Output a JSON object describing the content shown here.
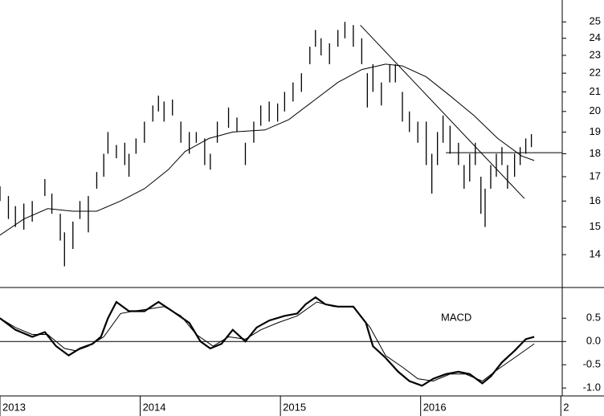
{
  "chart_data": [
    {
      "type": "hilo",
      "log_scale": true,
      "color": "#000000",
      "xlim": [
        2013.0,
        2017.01
      ],
      "ylim": [
        12.9,
        26.4
      ],
      "yticks": [
        14,
        15,
        16,
        17,
        18,
        19,
        20,
        21,
        22,
        23,
        24,
        25
      ],
      "x": [
        2013.0,
        2013.06,
        2013.11,
        2013.17,
        2013.23,
        2013.32,
        2013.37,
        2013.43,
        2013.46,
        2013.52,
        2013.57,
        2013.63,
        2013.69,
        2013.74,
        2013.77,
        2013.83,
        2013.89,
        2013.92,
        2013.97,
        2014.03,
        2014.09,
        2014.13,
        2014.17,
        2014.23,
        2014.29,
        2014.35,
        2014.4,
        2014.46,
        2014.5,
        2014.55,
        2014.63,
        2014.69,
        2014.75,
        2014.81,
        2014.86,
        2014.92,
        2014.98,
        2015.03,
        2015.09,
        2015.15,
        2015.21,
        2015.25,
        2015.29,
        2015.35,
        2015.41,
        2015.46,
        2015.52,
        2015.58,
        2015.62,
        2015.66,
        2015.72,
        2015.78,
        2015.82,
        2015.87,
        2015.92,
        2015.98,
        2016.04,
        2016.08,
        2016.12,
        2016.16,
        2016.21,
        2016.27,
        2016.31,
        2016.35,
        2016.39,
        2016.43,
        2016.46,
        2016.5,
        2016.54,
        2016.58,
        2016.62,
        2016.67,
        2016.71,
        2016.75,
        2016.79
      ],
      "low": [
        16.0,
        15.3,
        15.0,
        14.9,
        15.2,
        16.2,
        15.5,
        14.5,
        13.6,
        14.2,
        15.3,
        14.8,
        16.5,
        17.0,
        18.0,
        17.8,
        17.5,
        17.0,
        18.0,
        18.5,
        19.5,
        20.0,
        19.5,
        19.8,
        18.5,
        18.0,
        18.5,
        17.5,
        17.3,
        18.5,
        19.2,
        19.0,
        17.5,
        18.5,
        19.3,
        19.5,
        19.5,
        20.0,
        20.5,
        21.0,
        22.5,
        23.5,
        23.0,
        22.5,
        23.5,
        24.0,
        23.5,
        22.5,
        20.2,
        21.0,
        20.3,
        21.5,
        21.5,
        19.5,
        19.0,
        18.5,
        17.5,
        16.3,
        17.5,
        18.5,
        18.0,
        17.5,
        16.5,
        16.8,
        17.5,
        15.5,
        15.0,
        16.5,
        17.0,
        17.5,
        16.5,
        17.0,
        17.5,
        18.0,
        18.3
      ],
      "high": [
        16.6,
        16.2,
        15.8,
        15.9,
        16.0,
        16.9,
        16.3,
        15.5,
        14.8,
        15.2,
        16.0,
        16.2,
        17.2,
        18.0,
        19.0,
        18.4,
        18.5,
        18.0,
        18.7,
        19.5,
        20.3,
        20.8,
        20.5,
        20.6,
        19.5,
        19.0,
        19.0,
        18.7,
        18.0,
        19.5,
        20.2,
        19.7,
        18.5,
        19.5,
        20.3,
        20.5,
        20.4,
        21.0,
        21.5,
        22.0,
        23.5,
        24.5,
        24.0,
        23.7,
        24.5,
        25.0,
        24.8,
        24.0,
        22.0,
        22.5,
        21.5,
        22.5,
        22.5,
        21.0,
        20.0,
        19.5,
        19.5,
        18.0,
        19.0,
        19.8,
        19.3,
        18.5,
        17.5,
        18.0,
        18.5,
        17.0,
        16.5,
        17.5,
        18.0,
        18.3,
        17.5,
        18.0,
        18.3,
        18.7,
        18.9
      ],
      "series": [
        {
          "color": "#000000",
          "x": [
            2013.0,
            2013.17,
            2013.34,
            2013.52,
            2013.69,
            2013.86,
            2014.03,
            2014.2,
            2014.32,
            2014.49,
            2014.66,
            2014.89,
            2015.06,
            2015.23,
            2015.41,
            2015.58,
            2015.75,
            2015.87,
            2016.04,
            2016.21,
            2016.38,
            2016.55,
            2016.72,
            2016.81
          ],
          "values": [
            14.7,
            15.3,
            15.7,
            15.6,
            15.6,
            16.0,
            16.5,
            17.3,
            18.1,
            18.7,
            19.0,
            19.1,
            19.6,
            20.5,
            21.5,
            22.2,
            22.5,
            22.4,
            21.8,
            20.8,
            19.8,
            18.7,
            17.9,
            17.7
          ]
        },
        {
          "color": "#000000",
          "x": [
            2015.57,
            2016.74
          ],
          "values": [
            24.8,
            16.1
          ]
        },
        {
          "color": "#000000",
          "x": [
            2016.18,
            2017.01
          ],
          "values": [
            18.05,
            18.05
          ]
        }
      ]
    },
    {
      "type": "line",
      "annotation": "MACD",
      "zero_line": true,
      "xlim": [
        2013.0,
        2017.01
      ],
      "ylim": [
        -1.17,
        1.16
      ],
      "yticks": [
        0.5,
        {
          "value": 0,
          "label": "0.0"
        },
        -0.5,
        {
          "value": -1,
          "label": "-1.0"
        }
      ],
      "xticks": [
        2013,
        2014,
        2015,
        2016,
        {
          "value": 2017,
          "label": "2"
        }
      ],
      "series": [
        {
          "color": "#000000",
          "width": 2.2,
          "x": [
            2013.0,
            2013.11,
            2013.23,
            2013.32,
            2013.4,
            2013.49,
            2013.57,
            2013.66,
            2013.72,
            2013.77,
            2013.83,
            2013.92,
            2014.03,
            2014.13,
            2014.23,
            2014.35,
            2014.43,
            2014.5,
            2014.58,
            2014.66,
            2014.75,
            2014.83,
            2014.92,
            2015.03,
            2015.12,
            2015.18,
            2015.25,
            2015.32,
            2015.41,
            2015.52,
            2015.61,
            2015.66,
            2015.75,
            2015.84,
            2015.92,
            2016.01,
            2016.09,
            2016.18,
            2016.27,
            2016.35,
            2016.44,
            2016.5,
            2016.58,
            2016.67,
            2016.75,
            2016.81
          ],
          "values": [
            0.5,
            0.25,
            0.1,
            0.2,
            -0.1,
            -0.3,
            -0.15,
            -0.05,
            0.1,
            0.5,
            0.85,
            0.65,
            0.65,
            0.85,
            0.65,
            0.4,
            0.0,
            -0.15,
            -0.05,
            0.25,
            0.0,
            0.3,
            0.45,
            0.55,
            0.6,
            0.8,
            0.95,
            0.8,
            0.75,
            0.75,
            0.4,
            -0.1,
            -0.35,
            -0.65,
            -0.85,
            -0.95,
            -0.8,
            -0.7,
            -0.65,
            -0.7,
            -0.9,
            -0.75,
            -0.45,
            -0.2,
            0.05,
            0.1
          ]
        },
        {
          "color": "#000000",
          "width": 1,
          "x": [
            2013.0,
            2013.11,
            2013.23,
            2013.34,
            2013.46,
            2013.54,
            2013.63,
            2013.74,
            2013.86,
            2013.95,
            2014.06,
            2014.17,
            2014.29,
            2014.4,
            2014.52,
            2014.63,
            2014.75,
            2014.86,
            2014.98,
            2015.12,
            2015.26,
            2015.38,
            2015.52,
            2015.64,
            2015.75,
            2015.87,
            2015.98,
            2016.09,
            2016.21,
            2016.32,
            2016.44,
            2016.55,
            2016.67,
            2016.81
          ],
          "values": [
            0.5,
            0.3,
            0.15,
            0.15,
            -0.15,
            -0.2,
            -0.1,
            0.1,
            0.6,
            0.65,
            0.7,
            0.75,
            0.55,
            0.15,
            -0.1,
            0.1,
            0.05,
            0.25,
            0.4,
            0.55,
            0.85,
            0.75,
            0.75,
            0.3,
            -0.3,
            -0.55,
            -0.8,
            -0.85,
            -0.7,
            -0.7,
            -0.85,
            -0.6,
            -0.35,
            -0.05
          ]
        }
      ]
    }
  ]
}
